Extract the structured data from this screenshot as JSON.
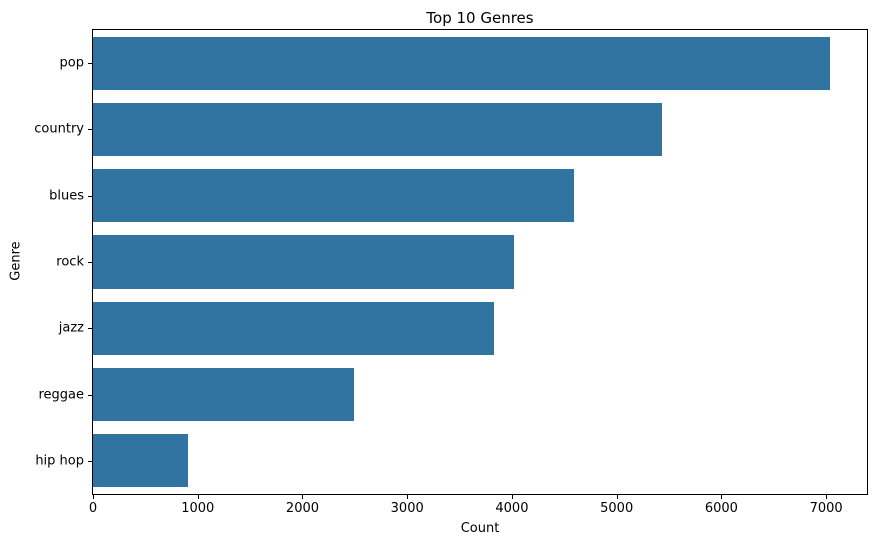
{
  "figure": {
    "background": "#ffffff",
    "text_color": "#000000",
    "spine_color": "#000000"
  },
  "chart_data": {
    "type": "bar",
    "orientation": "horizontal",
    "title": "Top 10 Genres",
    "xlabel": "Count",
    "ylabel": "Genre",
    "categories": [
      "pop",
      "country",
      "blues",
      "rock",
      "jazz",
      "reggae",
      "hip hop"
    ],
    "values": [
      7040,
      5430,
      4590,
      4020,
      3830,
      2490,
      910
    ],
    "x_ticks": [
      0,
      1000,
      2000,
      3000,
      4000,
      5000,
      6000,
      7000
    ],
    "xlim": [
      0,
      7390
    ],
    "bar_color": "#3274a1",
    "bar_rel_height": 0.8,
    "grid": false,
    "legend": "none"
  }
}
